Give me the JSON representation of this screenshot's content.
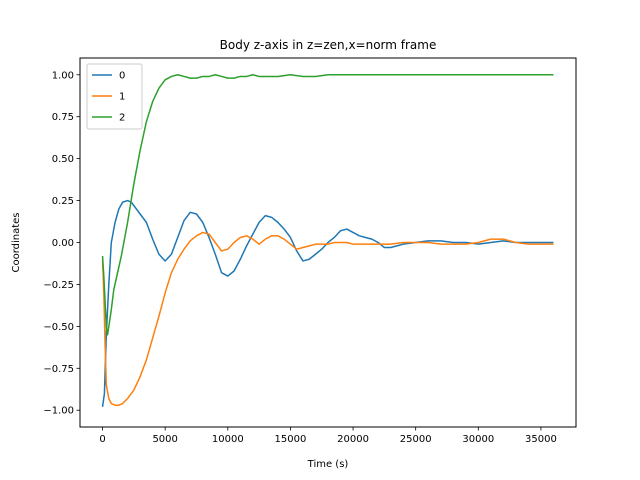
{
  "chart_data": {
    "type": "line",
    "title": "Body z-axis in z=zen,x=norm frame",
    "xlabel": "Time (s)",
    "ylabel": "Coordinates",
    "xlim": [
      -1800,
      37800
    ],
    "ylim": [
      -1.1,
      1.1
    ],
    "xticks": [
      0,
      5000,
      10000,
      15000,
      20000,
      25000,
      30000,
      35000
    ],
    "yticks": [
      -1.0,
      -0.75,
      -0.5,
      -0.25,
      0.0,
      0.25,
      0.5,
      0.75,
      1.0
    ],
    "xtick_labels": [
      "0",
      "5000",
      "10000",
      "15000",
      "20000",
      "25000",
      "30000",
      "35000"
    ],
    "ytick_labels": [
      "−1.00",
      "−0.75",
      "−0.50",
      "−0.25",
      "0.00",
      "0.25",
      "0.50",
      "0.75",
      "1.00"
    ],
    "grid": false,
    "legend_position": "top-left",
    "series": [
      {
        "name": "0",
        "color": "#1f77b4",
        "x": [
          0,
          150,
          300,
          500,
          700,
          1000,
          1300,
          1600,
          2000,
          2300,
          2600,
          3000,
          3500,
          4000,
          4500,
          5000,
          5500,
          6000,
          6500,
          7000,
          7500,
          8000,
          8500,
          9000,
          9500,
          10000,
          10500,
          11000,
          11500,
          12000,
          12500,
          13000,
          13500,
          14000,
          14500,
          15000,
          15500,
          16000,
          16500,
          17000,
          17500,
          18000,
          18500,
          19000,
          19500,
          20000,
          20500,
          21000,
          21500,
          22000,
          22500,
          23000,
          23500,
          24000,
          25000,
          26000,
          27000,
          28000,
          29000,
          30000,
          31000,
          32000,
          33000,
          34000,
          35000,
          36000
        ],
        "y": [
          -0.98,
          -0.9,
          -0.55,
          -0.25,
          0.0,
          0.12,
          0.2,
          0.24,
          0.25,
          0.24,
          0.21,
          0.17,
          0.12,
          0.02,
          -0.07,
          -0.11,
          -0.07,
          0.03,
          0.13,
          0.18,
          0.17,
          0.12,
          0.03,
          -0.07,
          -0.18,
          -0.2,
          -0.17,
          -0.1,
          -0.02,
          0.05,
          0.12,
          0.16,
          0.15,
          0.12,
          0.08,
          0.03,
          -0.05,
          -0.11,
          -0.1,
          -0.07,
          -0.04,
          0.0,
          0.03,
          0.07,
          0.08,
          0.06,
          0.04,
          0.03,
          0.02,
          0.0,
          -0.03,
          -0.03,
          -0.02,
          -0.01,
          0.0,
          0.01,
          0.01,
          0.0,
          0.0,
          -0.01,
          0.0,
          0.01,
          0.0,
          0.0,
          0.0,
          0.0
        ]
      },
      {
        "name": "1",
        "color": "#ff7f0e",
        "x": [
          0,
          100,
          200,
          300,
          500,
          700,
          1000,
          1300,
          1600,
          2000,
          2500,
          3000,
          3500,
          4000,
          4500,
          5000,
          5500,
          6000,
          6500,
          7000,
          7500,
          8000,
          8500,
          9000,
          9500,
          10000,
          10500,
          11000,
          11500,
          12000,
          12500,
          13000,
          13500,
          14000,
          14500,
          15000,
          15500,
          16000,
          16500,
          17000,
          17500,
          18000,
          18500,
          19000,
          19500,
          20000,
          21000,
          22000,
          23000,
          24000,
          25000,
          26000,
          27000,
          28000,
          29000,
          30000,
          31000,
          31500,
          32000,
          33000,
          34000,
          35000,
          36000
        ],
        "y": [
          -0.1,
          -0.3,
          -0.6,
          -0.85,
          -0.93,
          -0.96,
          -0.97,
          -0.97,
          -0.96,
          -0.93,
          -0.88,
          -0.8,
          -0.7,
          -0.57,
          -0.44,
          -0.3,
          -0.18,
          -0.1,
          -0.04,
          0.01,
          0.04,
          0.06,
          0.05,
          0.0,
          -0.05,
          -0.04,
          0.0,
          0.03,
          0.04,
          0.02,
          -0.01,
          0.02,
          0.04,
          0.04,
          0.02,
          -0.01,
          -0.04,
          -0.03,
          -0.02,
          -0.01,
          -0.01,
          -0.01,
          0.0,
          0.0,
          0.0,
          -0.01,
          -0.01,
          -0.01,
          -0.01,
          0.0,
          0.0,
          0.0,
          -0.01,
          -0.01,
          -0.01,
          0.0,
          0.02,
          0.02,
          0.02,
          0.0,
          -0.01,
          -0.01,
          -0.01
        ]
      },
      {
        "name": "2",
        "color": "#2ca02c",
        "x": [
          0,
          100,
          200,
          300,
          400,
          500,
          700,
          900,
          1200,
          1500,
          2000,
          2500,
          3000,
          3500,
          4000,
          4500,
          5000,
          5500,
          6000,
          6500,
          7000,
          7500,
          8000,
          8500,
          9000,
          9500,
          10000,
          10500,
          11000,
          11500,
          12000,
          12500,
          13000,
          14000,
          15000,
          16000,
          17000,
          18000,
          19000,
          20000,
          21000,
          22000,
          23000,
          24000,
          26000,
          28000,
          30000,
          32000,
          34000,
          36000
        ],
        "y": [
          -0.08,
          -0.2,
          -0.35,
          -0.5,
          -0.55,
          -0.5,
          -0.4,
          -0.28,
          -0.18,
          -0.08,
          0.12,
          0.35,
          0.55,
          0.72,
          0.84,
          0.92,
          0.97,
          0.99,
          1.0,
          0.99,
          0.98,
          0.98,
          0.99,
          0.99,
          1.0,
          0.99,
          0.98,
          0.98,
          0.99,
          0.99,
          1.0,
          0.99,
          0.99,
          0.99,
          1.0,
          0.99,
          0.99,
          1.0,
          1.0,
          1.0,
          1.0,
          1.0,
          1.0,
          1.0,
          1.0,
          1.0,
          1.0,
          1.0,
          1.0,
          1.0
        ]
      }
    ]
  }
}
